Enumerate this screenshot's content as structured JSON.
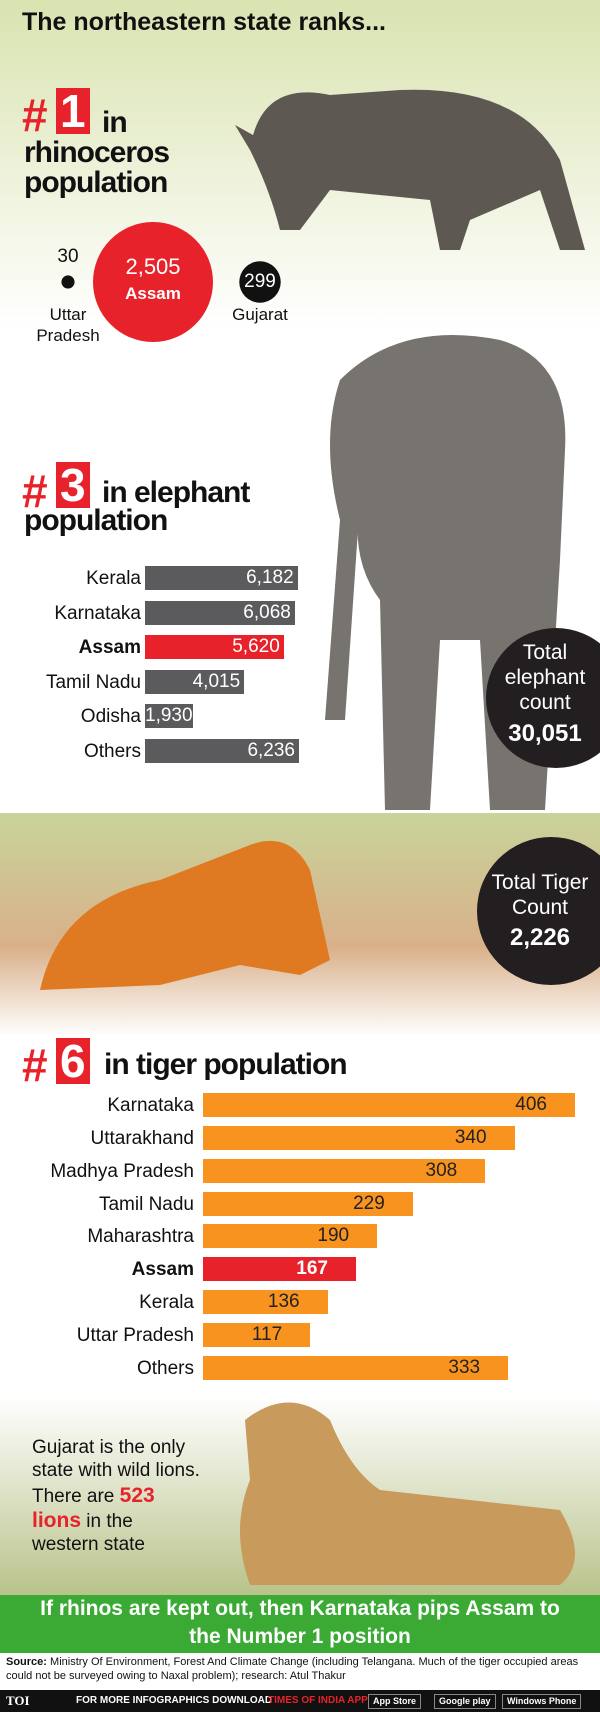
{
  "header": {
    "title": "The northeastern state ranks..."
  },
  "rhino": {
    "rank_symbol": "#",
    "rank": "1",
    "caption_lines": [
      "in",
      "rhinoceros",
      "population"
    ],
    "states": [
      {
        "name": "Uttar Pradesh",
        "value": {
          "value": 30,
          "label": "30"
        },
        "color": "#111111"
      },
      {
        "name": "Assam",
        "value": {
          "value": 2505,
          "label": "2,505"
        },
        "color": "#e8222a"
      },
      {
        "name": "Gujarat",
        "value": {
          "value": 299,
          "label": "299"
        },
        "color": "#111111"
      }
    ]
  },
  "elephant": {
    "rank_symbol": "#",
    "rank": "3",
    "caption_lines": [
      "in elephant",
      "population"
    ],
    "rows": [
      {
        "name": "Kerala",
        "value": {
          "value": 6182,
          "label": "6,182"
        },
        "color": "#5b5b5d",
        "highlight": false
      },
      {
        "name": "Karnataka",
        "value": {
          "value": 6068,
          "label": "6,068"
        },
        "color": "#5b5b5d",
        "highlight": false
      },
      {
        "name": "Assam",
        "value": {
          "value": 5620,
          "label": "5,620"
        },
        "color": "#e8222a",
        "highlight": true
      },
      {
        "name": "Tamil Nadu",
        "value": {
          "value": 4015,
          "label": "4,015"
        },
        "color": "#5b5b5d",
        "highlight": false
      },
      {
        "name": "Odisha",
        "value": {
          "value": 1930,
          "label": "1,930"
        },
        "color": "#5b5b5d",
        "highlight": false
      },
      {
        "name": "Others",
        "value": {
          "value": 6236,
          "label": "6,236"
        },
        "color": "#5b5b5d",
        "highlight": false
      }
    ],
    "total": {
      "caption": "Total elephant count",
      "value": {
        "value": 30051,
        "label": "30,051"
      }
    }
  },
  "tiger": {
    "rank_symbol": "#",
    "rank": "6",
    "caption": "in tiger population",
    "total": {
      "caption": "Total Tiger Count",
      "value": {
        "value": 2226,
        "label": "2,226"
      }
    },
    "rows": [
      {
        "name": "Karnataka",
        "value": 406,
        "color": "#f7931e",
        "highlight": false
      },
      {
        "name": "Uttarakhand",
        "value": 340,
        "color": "#f7931e",
        "highlight": false
      },
      {
        "name": "Madhya Pradesh",
        "value": 308,
        "color": "#f7931e",
        "highlight": false
      },
      {
        "name": "Tamil Nadu",
        "value": 229,
        "color": "#f7931e",
        "highlight": false
      },
      {
        "name": "Maharashtra",
        "value": 190,
        "color": "#f7931e",
        "highlight": false
      },
      {
        "name": "Assam",
        "value": 167,
        "color": "#e8222a",
        "highlight": true
      },
      {
        "name": "Kerala",
        "value": 136,
        "color": "#f7931e",
        "highlight": false
      },
      {
        "name": "Uttar Pradesh",
        "value": 117,
        "color": "#f7931e",
        "highlight": false
      },
      {
        "name": "Others",
        "value": 333,
        "color": "#f7931e",
        "highlight": false
      }
    ]
  },
  "lion": {
    "text_before": "Gujarat is the only state with wild lions. There are",
    "highlight": "523 lions",
    "text_after": "in the western state"
  },
  "banner": {
    "lines": [
      "If rhinos are kept out, then Karnataka pips Assam to",
      "the Number 1 position"
    ]
  },
  "source": {
    "label": "Source:",
    "text": "Ministry Of Environment, Forest And Climate Change (including Telangana. Much of the tiger occupied areas could not be surveyed owing to Naxal problem); research: Atul Thakur"
  },
  "footer": {
    "logo": "TOI",
    "text": "FOR MORE INFOGRAPHICS DOWNLOAD",
    "app": "TIMES OF INDIA APP",
    "badges": [
      "App Store",
      "Google play",
      "Windows Phone"
    ]
  }
}
